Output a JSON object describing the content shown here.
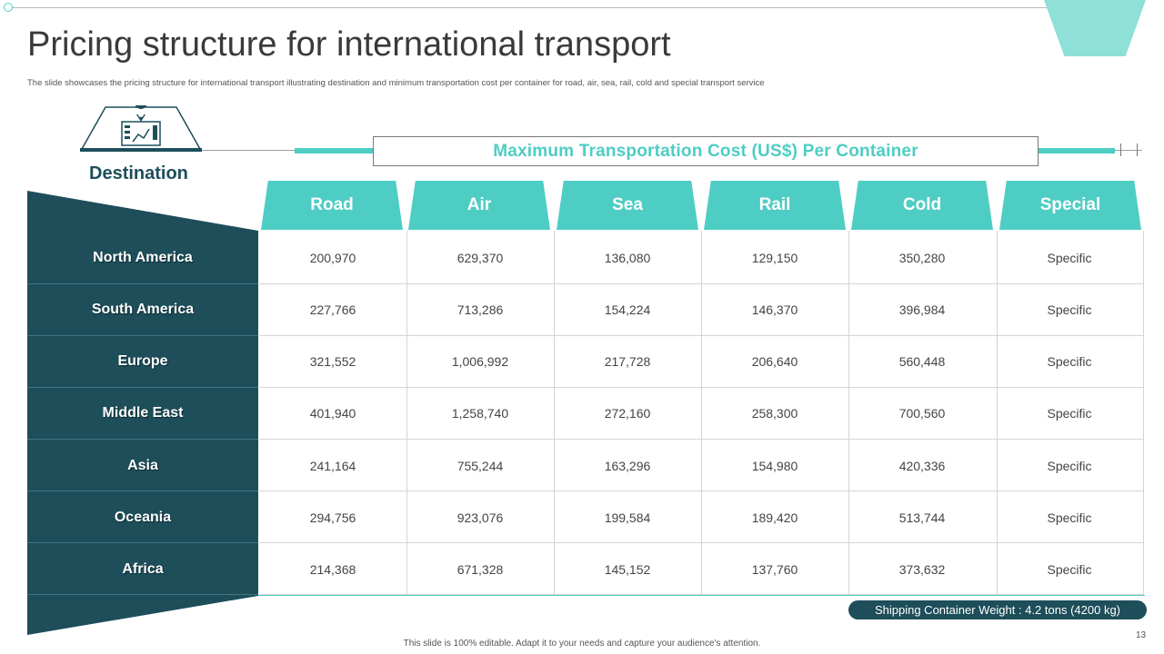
{
  "slide": {
    "title": "Pricing structure for international transport",
    "subtitle": "The slide showcases the pricing structure for international transport illustrating destination and minimum  transportation cost per container for road, air, sea, rail,  cold and special transport service",
    "destination_label": "Destination",
    "header": "Maximum Transportation  Cost (US$) Per Container",
    "weight_note": "Shipping Container Weight : 4.2 tons (4200  kg)",
    "footer": "This slide is 100% editable.  Adapt it to your needs and capture your audience's attention.",
    "page_number": "13"
  },
  "table": {
    "columns": [
      "Road",
      "Air",
      "Sea",
      "Rail",
      "Cold",
      "Special"
    ],
    "rows": [
      {
        "name": "North America",
        "values": [
          "200,970",
          "629,370",
          "136,080",
          "129,150",
          "350,280",
          "Specific"
        ]
      },
      {
        "name": "South America",
        "values": [
          "227,766",
          "713,286",
          "154,224",
          "146,370",
          "396,984",
          "Specific"
        ]
      },
      {
        "name": "Europe",
        "values": [
          "321,552",
          "1,006,992",
          "217,728",
          "206,640",
          "560,448",
          "Specific"
        ]
      },
      {
        "name": "Middle East",
        "values": [
          "401,940",
          "1,258,740",
          "272,160",
          "258,300",
          "700,560",
          "Specific"
        ]
      },
      {
        "name": "Asia",
        "values": [
          "241,164",
          "755,244",
          "163,296",
          "154,980",
          "420,336",
          "Specific"
        ]
      },
      {
        "name": "Oceania",
        "values": [
          "294,756",
          "923,076",
          "199,584",
          "189,420",
          "513,744",
          "Specific"
        ]
      },
      {
        "name": "Africa",
        "values": [
          "214,368",
          "671,328",
          "145,152",
          "137,760",
          "373,632",
          "Specific"
        ]
      }
    ]
  },
  "icons": {
    "destination_icon": "map-pin-icon"
  },
  "colors": {
    "accent": "#4ecdc4",
    "dark": "#1d4e5a"
  }
}
